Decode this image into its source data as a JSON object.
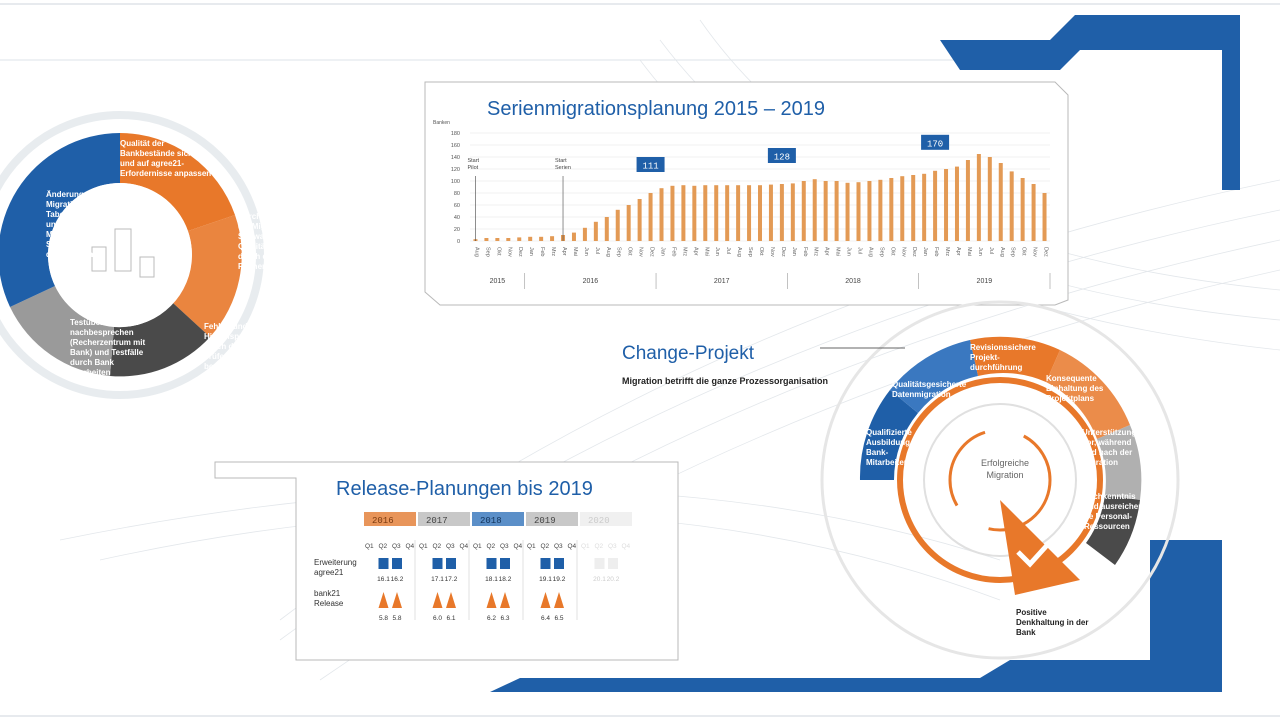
{
  "colors": {
    "orange": "#e8782a",
    "blue": "#1f5fa8",
    "darkgray": "#4a4a4a",
    "gray": "#9a9a9a",
    "lightgray": "#cfcfcf",
    "bar": "#e39a55"
  },
  "cycle": {
    "seg1": "Qualität der Bankbestände sichern und auf agree21-Erfordernisse anpassen",
    "seg2": "Durchlauf durch die Migrations-Software mit Qualitätssicherung durch das Rechenzentrum",
    "seg3": "Fehler- und Hinweisprotokolle durch die Bank prüfen und bearbeiten",
    "seg4": "Testüberleitungen nachbesprechen (Recherzentrum mit Bank) und Testfälle durch Bank bearbeiten",
    "seg5": "Änderungen an Migrations-Tabellen und/oder Migrations-Software durchführen"
  },
  "chart_data": {
    "type": "bar",
    "title": "Serienmigrationsplanung 2015 – 2019",
    "ylabel": "Banken",
    "ylim": [
      0,
      180
    ],
    "yticks": [
      0,
      20,
      40,
      60,
      80,
      100,
      120,
      140,
      160,
      180
    ],
    "categories": [
      "Aug",
      "Sep",
      "Okt",
      "Nov",
      "Dez",
      "Jan",
      "Feb",
      "Mrz",
      "Apr",
      "Mai",
      "Jun",
      "Jul",
      "Aug",
      "Sep",
      "Okt",
      "Nov",
      "Dez",
      "Jan",
      "Feb",
      "Mrz",
      "Apr",
      "Mai",
      "Jun",
      "Jul",
      "Aug",
      "Sep",
      "Okt",
      "Nov",
      "Dez",
      "Jan",
      "Feb",
      "Mrz",
      "Apr",
      "Mai",
      "Jun",
      "Jul",
      "Aug",
      "Sep",
      "Okt",
      "Nov",
      "Dez",
      "Jan",
      "Feb",
      "Mrz",
      "Apr",
      "Mai",
      "Jun",
      "Jul",
      "Aug",
      "Sep",
      "Okt",
      "Nov",
      "Dez"
    ],
    "values": [
      3,
      5,
      5,
      5,
      6,
      7,
      7,
      8,
      10,
      14,
      22,
      32,
      40,
      52,
      60,
      70,
      80,
      88,
      92,
      93,
      92,
      93,
      93,
      93,
      93,
      93,
      93,
      94,
      95,
      96,
      100,
      103,
      100,
      100,
      97,
      98,
      100,
      102,
      105,
      108,
      110,
      112,
      117,
      120,
      124,
      135,
      145,
      140,
      130,
      116,
      105,
      95,
      80
    ],
    "years": [
      {
        "label": "2015",
        "start": 0,
        "end": 4
      },
      {
        "label": "2016",
        "start": 5,
        "end": 16
      },
      {
        "label": "2017",
        "start": 17,
        "end": 28
      },
      {
        "label": "2018",
        "start": 29,
        "end": 40
      },
      {
        "label": "2019",
        "start": 41,
        "end": 52
      }
    ],
    "callouts": [
      {
        "label": "111",
        "index": 16
      },
      {
        "label": "128",
        "index": 28
      },
      {
        "label": "170",
        "index": 42
      }
    ],
    "markers": [
      {
        "label": "Start Pilot",
        "index": 0
      },
      {
        "label": "Start Serien",
        "index": 8
      }
    ]
  },
  "change": {
    "title": "Change-Projekt",
    "subtitle": "Migration betrifft die ganze Prozessorganisation",
    "segments": [
      "Revisionssichere Projekt-durchführung",
      "Konsequente Einhaltung des Projektplans",
      "Unterstützung vor, während und nach der Migration",
      "Fachkenntnis und ausreichen-de Personal-Ressourcen",
      "Qualifizierte Ausbildung der Bank-Mitarbeiter",
      "Qualitätsgesicherte Datenmigration"
    ],
    "center": "Erfolgreiche Migration",
    "pointer": "Positive Denkhaltung in der Bank"
  },
  "release": {
    "title": "Release-Planungen bis 2019",
    "years": [
      "2016",
      "2017",
      "2018",
      "2019",
      "2020"
    ],
    "quarters": [
      "Q1",
      "Q2",
      "Q3",
      "Q4"
    ],
    "row1_label": "Erweiterung agree21",
    "row2_label": "bank21 Release",
    "agree21": [
      {
        "year": 0,
        "q": 1,
        "v": "16.1"
      },
      {
        "year": 0,
        "q": 2,
        "v": "16.2"
      },
      {
        "year": 1,
        "q": 1,
        "v": "17.1"
      },
      {
        "year": 1,
        "q": 2,
        "v": "17.2"
      },
      {
        "year": 2,
        "q": 1,
        "v": "18.1"
      },
      {
        "year": 2,
        "q": 2,
        "v": "18.2"
      },
      {
        "year": 3,
        "q": 1,
        "v": "19.1"
      },
      {
        "year": 3,
        "q": 2,
        "v": "19.2"
      },
      {
        "year": 4,
        "q": 1,
        "v": "20.1"
      },
      {
        "year": 4,
        "q": 2,
        "v": "20.2"
      }
    ],
    "bank21": [
      {
        "year": 0,
        "q": 1,
        "v": "5.8"
      },
      {
        "year": 0,
        "q": 2,
        "v": "5.8"
      },
      {
        "year": 1,
        "q": 1,
        "v": "6.0"
      },
      {
        "year": 1,
        "q": 2,
        "v": "6.1"
      },
      {
        "year": 2,
        "q": 1,
        "v": "6.2"
      },
      {
        "year": 2,
        "q": 2,
        "v": "6.3"
      },
      {
        "year": 3,
        "q": 1,
        "v": "6.4"
      },
      {
        "year": 3,
        "q": 2,
        "v": "6.5"
      }
    ]
  }
}
